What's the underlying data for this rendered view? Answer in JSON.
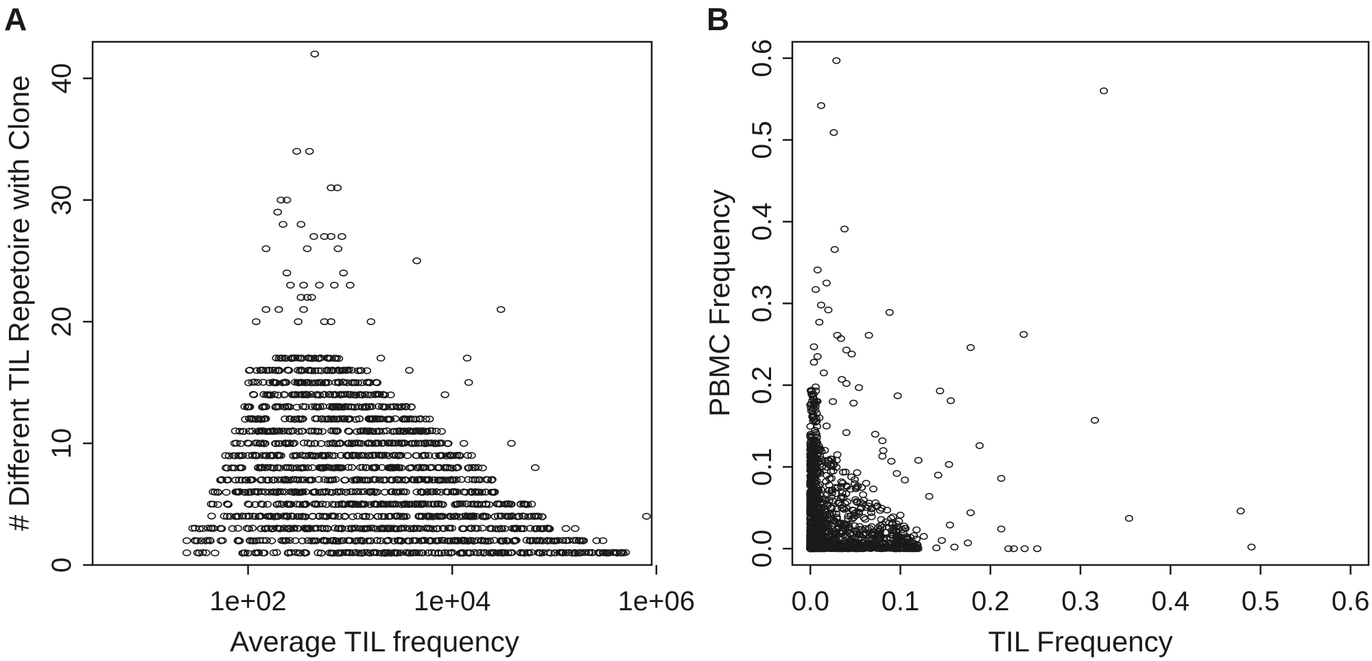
{
  "chart_data": [
    {
      "panel": "A",
      "type": "scatter",
      "xlabel": "Average TIL frequency",
      "ylabel": "# Different TIL Repetoire with Clone",
      "x_scale": "log",
      "xlim": [
        3,
        900000
      ],
      "ylim": [
        0,
        43
      ],
      "x_ticks": [
        {
          "value": 100,
          "label": "1e+02"
        },
        {
          "value": 10000,
          "label": "1e+04"
        },
        {
          "value": 1000000,
          "label": "1e+06"
        }
      ],
      "y_ticks": [
        {
          "value": 0,
          "label": "0"
        },
        {
          "value": 10,
          "label": "10"
        },
        {
          "value": 20,
          "label": "20"
        },
        {
          "value": 30,
          "label": "30"
        },
        {
          "value": 40,
          "label": "40"
        }
      ],
      "grid": false,
      "legend": "none",
      "rows": [
        {
          "y": 1,
          "xmin": 25,
          "xmax": 500000
        },
        {
          "y": 2,
          "xmin": 25,
          "xmax": 200000
        },
        {
          "y": 3,
          "xmin": 25,
          "xmax": 100000
        },
        {
          "y": 4,
          "xmin": 40,
          "xmax": 80000
        },
        {
          "y": 5,
          "xmin": 40,
          "xmax": 55000
        },
        {
          "y": 6,
          "xmin": 40,
          "xmax": 30000
        },
        {
          "y": 7,
          "xmin": 50,
          "xmax": 25000
        },
        {
          "y": 8,
          "xmin": 60,
          "xmax": 20000
        },
        {
          "y": 9,
          "xmin": 60,
          "xmax": 15000
        },
        {
          "y": 10,
          "xmin": 70,
          "xmax": 10000
        },
        {
          "y": 11,
          "xmin": 70,
          "xmax": 8000
        },
        {
          "y": 12,
          "xmin": 80,
          "xmax": 5000
        },
        {
          "y": 13,
          "xmin": 90,
          "xmax": 4000
        },
        {
          "y": 14,
          "xmin": 90,
          "xmax": 2500
        },
        {
          "y": 15,
          "xmin": 100,
          "xmax": 2000
        },
        {
          "y": 16,
          "xmin": 100,
          "xmax": 1500
        },
        {
          "y": 17,
          "xmin": 140,
          "xmax": 800
        }
      ],
      "points": [
        {
          "x": 450,
          "y": 42
        },
        {
          "x": 300,
          "y": 34
        },
        {
          "x": 400,
          "y": 34
        },
        {
          "x": 650,
          "y": 31
        },
        {
          "x": 750,
          "y": 31
        },
        {
          "x": 210,
          "y": 30
        },
        {
          "x": 240,
          "y": 30
        },
        {
          "x": 195,
          "y": 29
        },
        {
          "x": 220,
          "y": 28
        },
        {
          "x": 330,
          "y": 28
        },
        {
          "x": 440,
          "y": 27
        },
        {
          "x": 560,
          "y": 27
        },
        {
          "x": 650,
          "y": 27
        },
        {
          "x": 830,
          "y": 27
        },
        {
          "x": 150,
          "y": 26
        },
        {
          "x": 380,
          "y": 26
        },
        {
          "x": 760,
          "y": 26
        },
        {
          "x": 4500,
          "y": 25
        },
        {
          "x": 240,
          "y": 24
        },
        {
          "x": 860,
          "y": 24
        },
        {
          "x": 260,
          "y": 23
        },
        {
          "x": 350,
          "y": 23
        },
        {
          "x": 500,
          "y": 23
        },
        {
          "x": 700,
          "y": 23
        },
        {
          "x": 1000,
          "y": 23
        },
        {
          "x": 330,
          "y": 22
        },
        {
          "x": 380,
          "y": 22
        },
        {
          "x": 420,
          "y": 22
        },
        {
          "x": 150,
          "y": 21
        },
        {
          "x": 200,
          "y": 21
        },
        {
          "x": 350,
          "y": 21
        },
        {
          "x": 30000,
          "y": 21
        },
        {
          "x": 310,
          "y": 20
        },
        {
          "x": 560,
          "y": 20
        },
        {
          "x": 650,
          "y": 20
        },
        {
          "x": 1600,
          "y": 20
        },
        {
          "x": 120,
          "y": 20
        },
        {
          "x": 14000,
          "y": 17
        },
        {
          "x": 2000,
          "y": 17
        },
        {
          "x": 3800,
          "y": 16
        },
        {
          "x": 1100,
          "y": 15
        },
        {
          "x": 14500,
          "y": 15
        },
        {
          "x": 8500,
          "y": 14
        },
        {
          "x": 5500,
          "y": 12
        },
        {
          "x": 6000,
          "y": 12
        },
        {
          "x": 4200,
          "y": 11
        },
        {
          "x": 7000,
          "y": 11
        },
        {
          "x": 13000,
          "y": 10
        },
        {
          "x": 38000,
          "y": 10
        },
        {
          "x": 15500,
          "y": 9
        },
        {
          "x": 7500,
          "y": 8
        },
        {
          "x": 65000,
          "y": 8
        },
        {
          "x": 22000,
          "y": 7
        },
        {
          "x": 26000,
          "y": 6
        },
        {
          "x": 52000,
          "y": 5
        },
        {
          "x": 60000,
          "y": 5
        },
        {
          "x": 800000,
          "y": 4
        },
        {
          "x": 130000,
          "y": 3
        },
        {
          "x": 160000,
          "y": 3
        },
        {
          "x": 260000,
          "y": 2
        },
        {
          "x": 300000,
          "y": 2
        }
      ]
    },
    {
      "panel": "B",
      "type": "scatter",
      "xlabel": "TIL Frequency",
      "ylabel": "PBMC Frequency",
      "xlim": [
        -0.02,
        0.62
      ],
      "ylim": [
        -0.02,
        0.62
      ],
      "x_ticks": [
        {
          "value": 0.0,
          "label": "0.0"
        },
        {
          "value": 0.1,
          "label": "0.1"
        },
        {
          "value": 0.2,
          "label": "0.2"
        },
        {
          "value": 0.3,
          "label": "0.3"
        },
        {
          "value": 0.4,
          "label": "0.4"
        },
        {
          "value": 0.5,
          "label": "0.5"
        },
        {
          "value": 0.6,
          "label": "0.6"
        }
      ],
      "y_ticks": [
        {
          "value": 0.0,
          "label": "0.0"
        },
        {
          "value": 0.1,
          "label": "0.1"
        },
        {
          "value": 0.2,
          "label": "0.2"
        },
        {
          "value": 0.3,
          "label": "0.3"
        },
        {
          "value": 0.4,
          "label": "0.4"
        },
        {
          "value": 0.5,
          "label": "0.5"
        },
        {
          "value": 0.6,
          "label": "0.6"
        }
      ],
      "grid": false,
      "legend": "none",
      "points": [
        {
          "x": 0.029,
          "y": 0.597
        },
        {
          "x": 0.326,
          "y": 0.56
        },
        {
          "x": 0.012,
          "y": 0.542
        },
        {
          "x": 0.026,
          "y": 0.509
        },
        {
          "x": 0.038,
          "y": 0.391
        },
        {
          "x": 0.027,
          "y": 0.366
        },
        {
          "x": 0.008,
          "y": 0.341
        },
        {
          "x": 0.018,
          "y": 0.325
        },
        {
          "x": 0.006,
          "y": 0.317
        },
        {
          "x": 0.012,
          "y": 0.298
        },
        {
          "x": 0.02,
          "y": 0.292
        },
        {
          "x": 0.088,
          "y": 0.289
        },
        {
          "x": 0.01,
          "y": 0.277
        },
        {
          "x": 0.065,
          "y": 0.261
        },
        {
          "x": 0.237,
          "y": 0.262
        },
        {
          "x": 0.03,
          "y": 0.261
        },
        {
          "x": 0.034,
          "y": 0.257
        },
        {
          "x": 0.178,
          "y": 0.246
        },
        {
          "x": 0.004,
          "y": 0.247
        },
        {
          "x": 0.04,
          "y": 0.243
        },
        {
          "x": 0.046,
          "y": 0.238
        },
        {
          "x": 0.008,
          "y": 0.235
        },
        {
          "x": 0.004,
          "y": 0.228
        },
        {
          "x": 0.015,
          "y": 0.215
        },
        {
          "x": 0.035,
          "y": 0.207
        },
        {
          "x": 0.04,
          "y": 0.202
        },
        {
          "x": 0.054,
          "y": 0.197
        },
        {
          "x": 0.001,
          "y": 0.192
        },
        {
          "x": 0.144,
          "y": 0.193
        },
        {
          "x": 0.097,
          "y": 0.187
        },
        {
          "x": 0.025,
          "y": 0.18
        },
        {
          "x": 0.156,
          "y": 0.181
        },
        {
          "x": 0.048,
          "y": 0.178
        },
        {
          "x": 0.01,
          "y": 0.16
        },
        {
          "x": 0.316,
          "y": 0.157
        },
        {
          "x": 0.018,
          "y": 0.15
        },
        {
          "x": 0.006,
          "y": 0.142
        },
        {
          "x": 0.04,
          "y": 0.142
        },
        {
          "x": 0.072,
          "y": 0.14
        },
        {
          "x": 0.003,
          "y": 0.133
        },
        {
          "x": 0.08,
          "y": 0.132
        },
        {
          "x": 0.188,
          "y": 0.126
        },
        {
          "x": 0.081,
          "y": 0.12
        },
        {
          "x": 0.03,
          "y": 0.115
        },
        {
          "x": 0.08,
          "y": 0.113
        },
        {
          "x": 0.12,
          "y": 0.108
        },
        {
          "x": 0.09,
          "y": 0.107
        },
        {
          "x": 0.154,
          "y": 0.103
        },
        {
          "x": 0.002,
          "y": 0.098
        },
        {
          "x": 0.052,
          "y": 0.093
        },
        {
          "x": 0.096,
          "y": 0.092
        },
        {
          "x": 0.142,
          "y": 0.09
        },
        {
          "x": 0.212,
          "y": 0.086
        },
        {
          "x": 0.105,
          "y": 0.084
        },
        {
          "x": 0.062,
          "y": 0.08
        },
        {
          "x": 0.04,
          "y": 0.077
        },
        {
          "x": 0.07,
          "y": 0.073
        },
        {
          "x": 0.132,
          "y": 0.064
        },
        {
          "x": 0.05,
          "y": 0.06
        },
        {
          "x": 0.178,
          "y": 0.044
        },
        {
          "x": 0.478,
          "y": 0.046
        },
        {
          "x": 0.1,
          "y": 0.041
        },
        {
          "x": 0.354,
          "y": 0.037
        },
        {
          "x": 0.155,
          "y": 0.029
        },
        {
          "x": 0.212,
          "y": 0.024
        },
        {
          "x": 0.118,
          "y": 0.023
        },
        {
          "x": 0.126,
          "y": 0.015
        },
        {
          "x": 0.146,
          "y": 0.01
        },
        {
          "x": 0.175,
          "y": 0.007
        },
        {
          "x": 0.22,
          "y": 0.0
        },
        {
          "x": 0.226,
          "y": 0.0
        },
        {
          "x": 0.238,
          "y": 0.0
        },
        {
          "x": 0.252,
          "y": 0.0
        },
        {
          "x": 0.49,
          "y": 0.002
        },
        {
          "x": 0.11,
          "y": 0.0
        },
        {
          "x": 0.104,
          "y": 0.0
        },
        {
          "x": 0.093,
          "y": 0.0
        },
        {
          "x": 0.085,
          "y": 0.001
        },
        {
          "x": 0.076,
          "y": 0.002
        },
        {
          "x": 0.14,
          "y": 0.001
        },
        {
          "x": 0.16,
          "y": 0.002
        }
      ]
    }
  ]
}
